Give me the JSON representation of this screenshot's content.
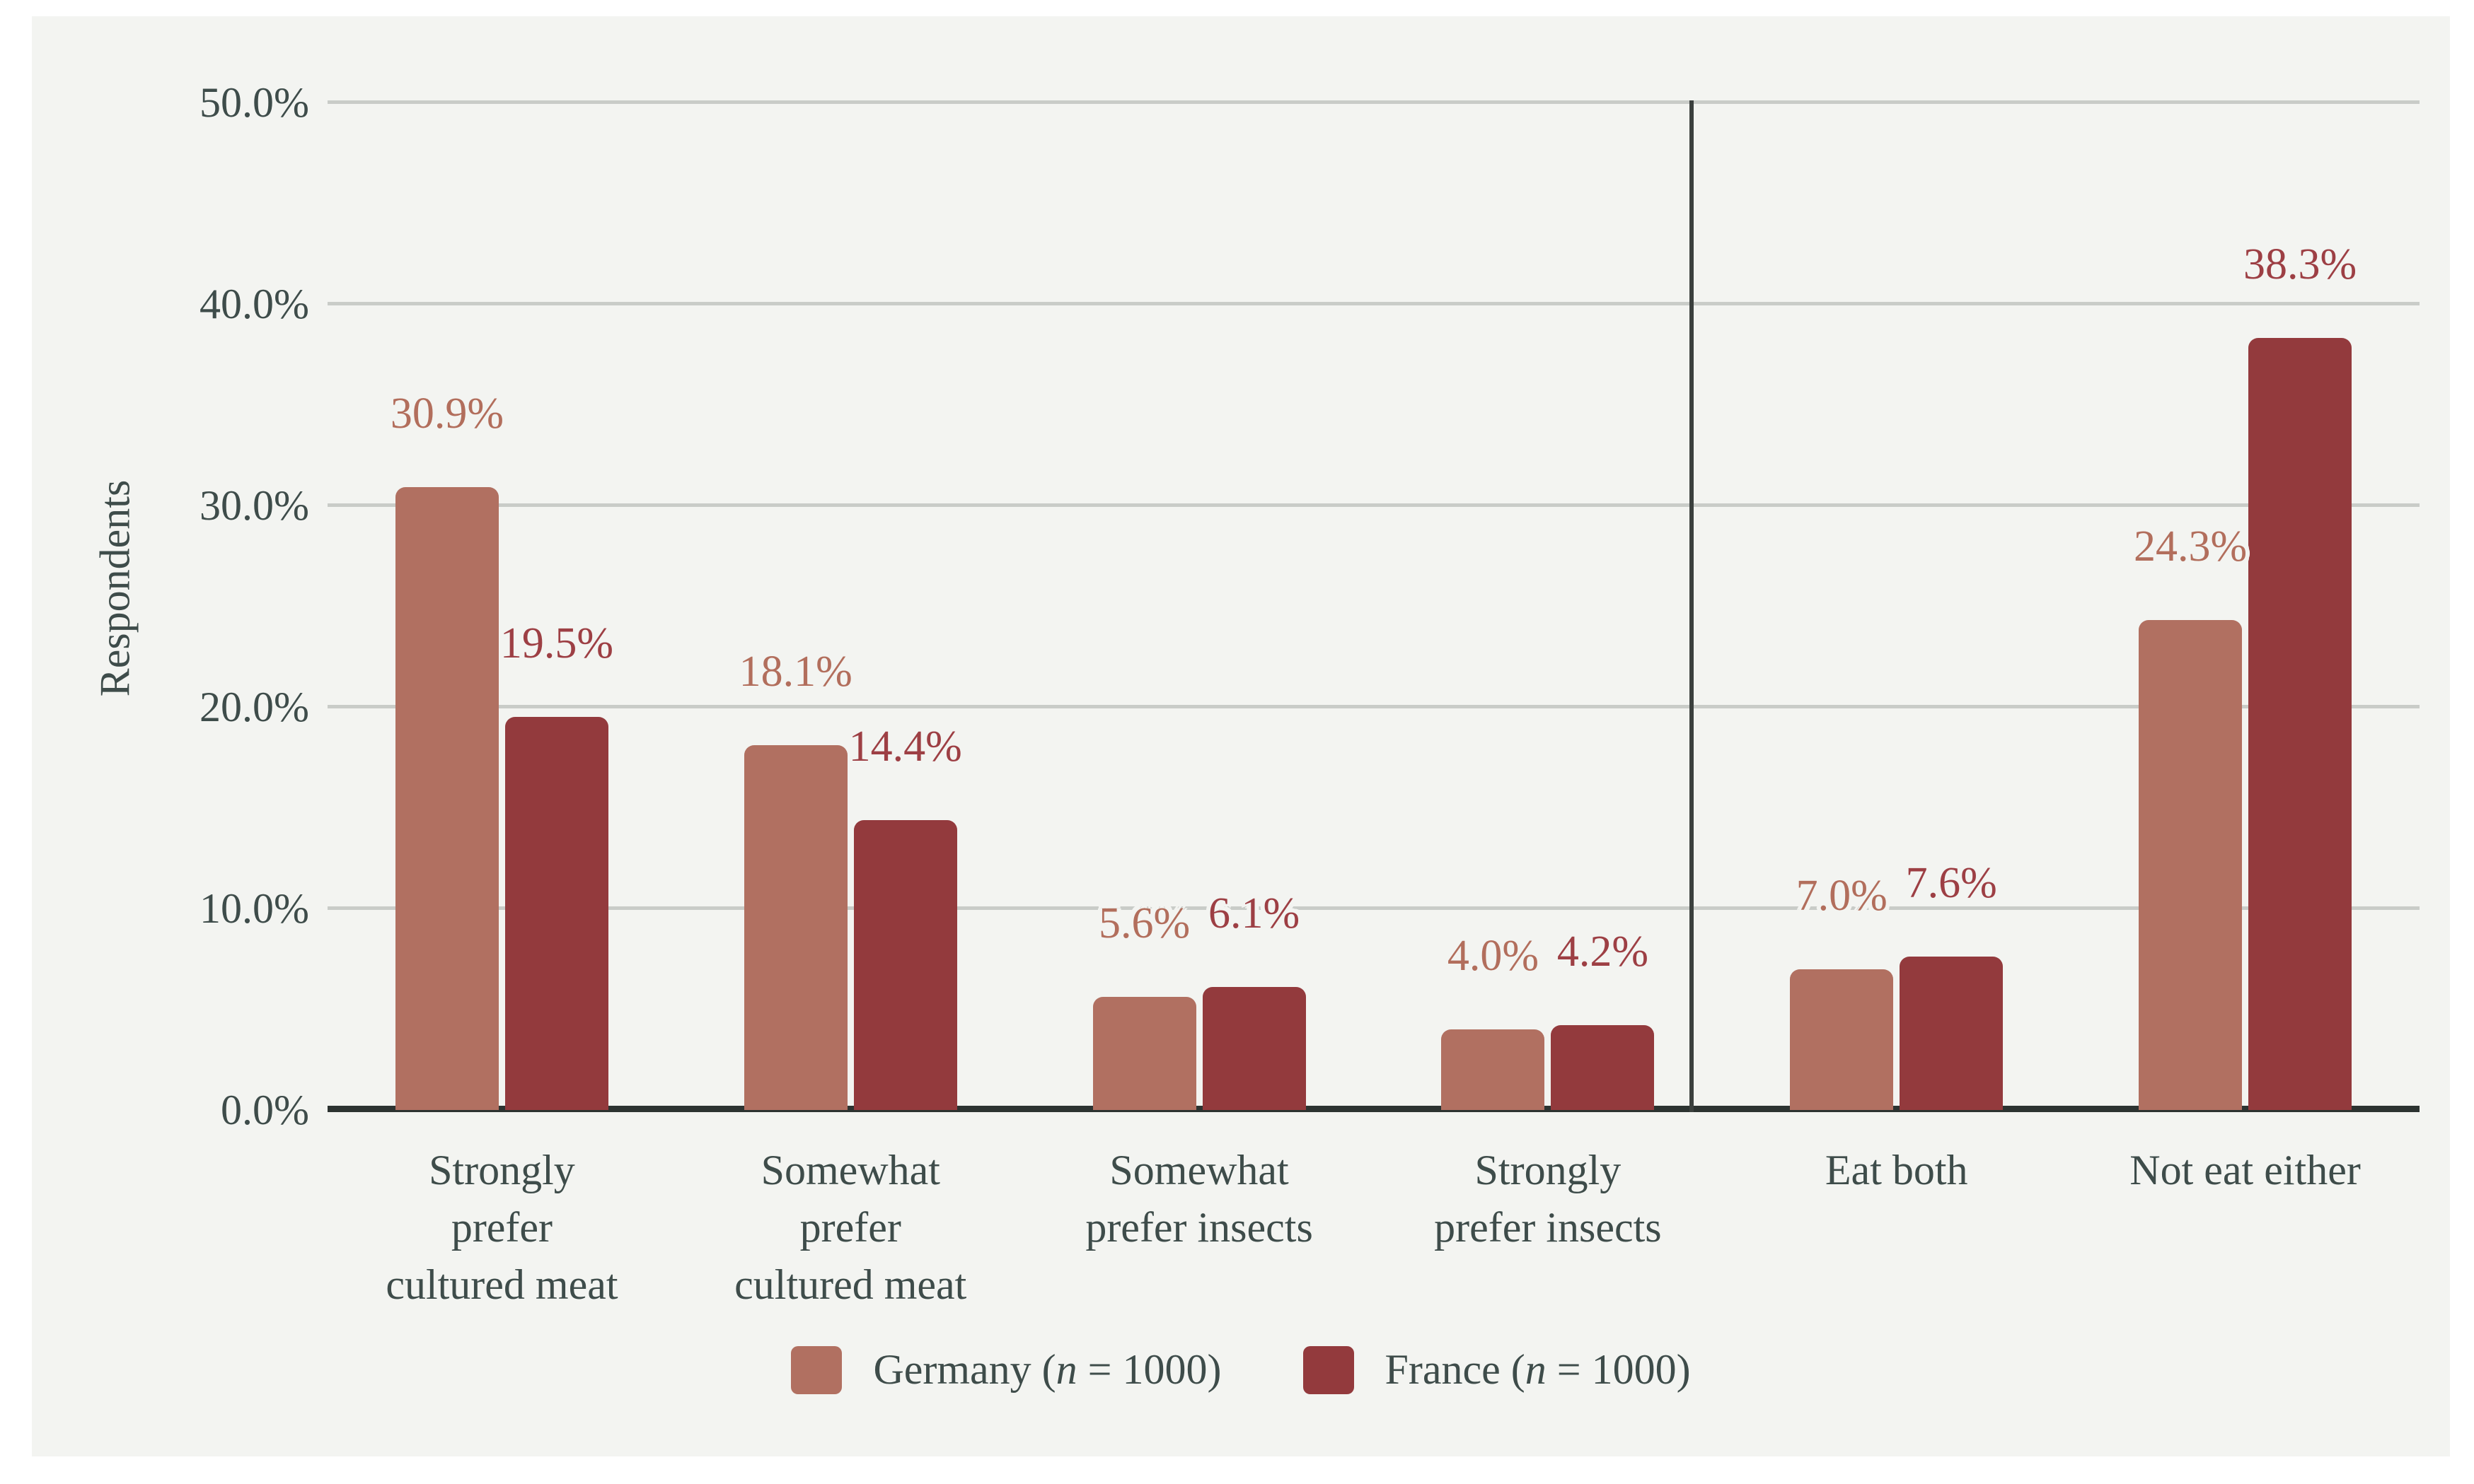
{
  "page": {
    "background": "#ffffff"
  },
  "panel": {
    "background": "#f3f4f1"
  },
  "chart_data": {
    "type": "bar",
    "title": "",
    "ylabel": "Respondents",
    "xlabel": "",
    "ylim": [
      0,
      50
    ],
    "grid": true,
    "legend_position": "bottom",
    "yticks": [
      {
        "v": 0,
        "label": "0.0%"
      },
      {
        "v": 10,
        "label": "10.0%"
      },
      {
        "v": 20,
        "label": "20.0%"
      },
      {
        "v": 30,
        "label": "30.0%"
      },
      {
        "v": 40,
        "label": "40.0%"
      },
      {
        "v": 50,
        "label": "50.0%"
      }
    ],
    "categories": [
      {
        "label": "Strongly prefer cultured meat",
        "lines": [
          "Strongly",
          "prefer",
          "cultured meat"
        ]
      },
      {
        "label": "Somewhat prefer cultured meat",
        "lines": [
          "Somewhat",
          "prefer",
          "cultured meat"
        ]
      },
      {
        "label": "Somewhat prefer insects",
        "lines": [
          "Somewhat",
          "prefer insects"
        ]
      },
      {
        "label": "Strongly prefer insects",
        "lines": [
          "Strongly",
          "prefer insects"
        ]
      },
      {
        "label": "Eat both",
        "lines": [
          "Eat both"
        ]
      },
      {
        "label": "Not eat either",
        "lines": [
          "Not eat either"
        ]
      }
    ],
    "series": [
      {
        "id": "germany",
        "legend_prefix": "Germany (",
        "legend_n": "n",
        "legend_suffix": " = 1000)",
        "legend_full": "Germany (n = 1000)",
        "color": "#b17061",
        "label_color": "#b26e5c",
        "values": [
          30.9,
          18.1,
          5.6,
          4.0,
          7.0,
          24.3
        ],
        "value_labels": [
          "30.9%",
          "18.1%",
          "5.6%",
          "4.0%",
          "7.0%",
          "24.3%"
        ]
      },
      {
        "id": "france",
        "legend_prefix": "France (",
        "legend_n": "n",
        "legend_suffix": " = 1000)",
        "legend_full": "France (n = 1000)",
        "color": "#933a3d",
        "label_color": "#9d3f44",
        "values": [
          19.5,
          14.4,
          6.1,
          4.2,
          7.6,
          38.3
        ],
        "value_labels": [
          "19.5%",
          "14.4%",
          "6.1%",
          "4.2%",
          "7.6%",
          "38.3%"
        ]
      }
    ],
    "divider_after_category_index": 3,
    "divider_position_fraction": 0.652,
    "grid_color": "#c9ccc8",
    "axis_color": "#2c3331",
    "divider_color": "#3b403e",
    "text_color": "#3e4c4a"
  }
}
